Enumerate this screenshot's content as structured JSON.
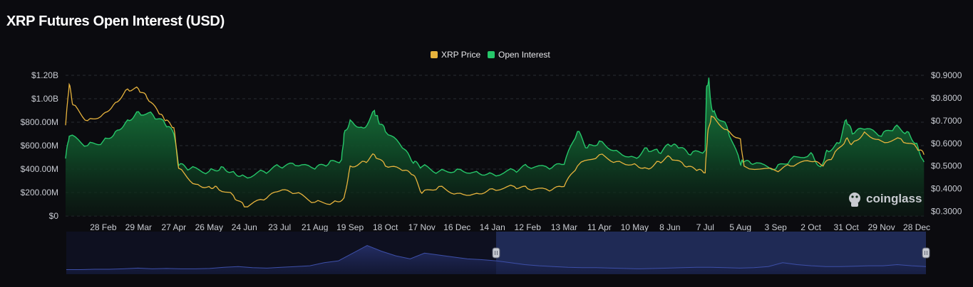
{
  "title": "XRP Futures Open Interest (USD)",
  "watermark": "coinglass",
  "colors": {
    "background": "#0b0b0f",
    "price_line": "#e7b33d",
    "oi_line": "#26c76a",
    "oi_fill_top": "#157a3c",
    "navigator_line": "#3d4fa8",
    "navigator_fill": "#1b2450",
    "navigator_selected": "#1f2a55"
  },
  "chart_data": {
    "type": "area",
    "title": "XRP Futures Open Interest (USD)",
    "x_tick_labels": [
      "28 Feb",
      "29 Mar",
      "27 Apr",
      "26 May",
      "24 Jun",
      "23 Jul",
      "21 Aug",
      "19 Sep",
      "18 Oct",
      "17 Nov",
      "16 Dec",
      "14 Jan",
      "12 Feb",
      "13 Mar",
      "11 Apr",
      "10 May",
      "8 Jun",
      "7 Jul",
      "5 Aug",
      "3 Sep",
      "2 Oct",
      "31 Oct",
      "29 Nov",
      "28 Dec"
    ],
    "y_left": {
      "label": "",
      "tick_labels": [
        "$0",
        "$200.00M",
        "$400.00M",
        "$600.00M",
        "$800.00M",
        "$1.00B",
        "$1.20B"
      ],
      "ylim": [
        0,
        1200000000
      ]
    },
    "y_right": {
      "label": "",
      "tick_labels": [
        "$0.3000",
        "$0.4000",
        "$0.5000",
        "$0.6000",
        "$0.7000",
        "$0.8000",
        "$0.9000"
      ],
      "ylim": [
        0.28,
        0.9
      ]
    },
    "grid": true,
    "legend_position": "top-center",
    "series": [
      {
        "name": "Open Interest",
        "axis": "left",
        "unit": "USD",
        "x": [
          "28 Jan",
          "31 Jan",
          "15 Feb",
          "28 Feb",
          "10 Mar",
          "20 Mar",
          "29 Mar",
          "10 Apr",
          "20 Apr",
          "27 Apr",
          "1 May",
          "10 May",
          "26 May",
          "5 Jun",
          "15 Jun",
          "24 Jun",
          "10 Jul",
          "23 Jul",
          "5 Aug",
          "21 Aug",
          "1 Sep",
          "12 Sep",
          "14 Sep",
          "19 Sep",
          "30 Sep",
          "9 Oct",
          "12 Oct",
          "18 Oct",
          "1 Nov",
          "10 Nov",
          "17 Nov",
          "1 Dec",
          "16 Dec",
          "1 Jan",
          "14 Jan",
          "1 Feb",
          "12 Feb",
          "1 Mar",
          "13 Mar",
          "24 Mar",
          "1 Apr",
          "11 Apr",
          "25 Apr",
          "10 May",
          "20 May",
          "30 May",
          "8 Jun",
          "15 Jun",
          "25 Jun",
          "7 Jul",
          "8 Jul",
          "10 Jul",
          "12 Jul",
          "15 Jul",
          "25 Jul",
          "5 Aug",
          "7 Aug",
          "15 Aug",
          "3 Sep",
          "15 Sep",
          "2 Oct",
          "10 Oct",
          "15 Oct",
          "25 Oct",
          "31 Oct",
          "5 Nov",
          "15 Nov",
          "29 Nov",
          "10 Dec",
          "20 Dec",
          "28 Dec",
          "3 Jan"
        ],
        "values": [
          490000000,
          680000000,
          600000000,
          640000000,
          720000000,
          820000000,
          890000000,
          860000000,
          780000000,
          700000000,
          430000000,
          400000000,
          380000000,
          420000000,
          380000000,
          340000000,
          380000000,
          420000000,
          430000000,
          400000000,
          440000000,
          480000000,
          700000000,
          820000000,
          750000000,
          900000000,
          820000000,
          720000000,
          580000000,
          450000000,
          420000000,
          380000000,
          400000000,
          380000000,
          360000000,
          390000000,
          420000000,
          400000000,
          440000000,
          720000000,
          580000000,
          640000000,
          560000000,
          500000000,
          580000000,
          540000000,
          600000000,
          580000000,
          520000000,
          560000000,
          1080000000,
          1180000000,
          940000000,
          880000000,
          760000000,
          440000000,
          460000000,
          440000000,
          400000000,
          480000000,
          540000000,
          420000000,
          560000000,
          620000000,
          820000000,
          700000000,
          740000000,
          680000000,
          760000000,
          720000000,
          620000000,
          460000000
        ]
      },
      {
        "name": "XRP Price",
        "axis": "right",
        "unit": "USD",
        "x": [
          "28 Jan",
          "31 Jan",
          "3 Feb",
          "15 Feb",
          "28 Feb",
          "10 Mar",
          "20 Mar",
          "29 Mar",
          "5 Apr",
          "15 Apr",
          "20 Apr",
          "27 Apr",
          "1 May",
          "15 May",
          "26 May",
          "1 Jun",
          "15 Jun",
          "24 Jun",
          "10 Jul",
          "23 Jul",
          "5 Aug",
          "21 Aug",
          "5 Sep",
          "14 Sep",
          "19 Sep",
          "1 Oct",
          "9 Oct",
          "18 Oct",
          "1 Nov",
          "10 Nov",
          "17 Nov",
          "1 Dec",
          "16 Dec",
          "1 Jan",
          "14 Jan",
          "1 Feb",
          "12 Feb",
          "1 Mar",
          "13 Mar",
          "24 Mar",
          "11 Apr",
          "25 Apr",
          "10 May",
          "20 May",
          "30 May",
          "8 Jun",
          "20 Jun",
          "30 Jun",
          "7 Jul",
          "9 Jul",
          "12 Jul",
          "25 Jul",
          "5 Aug",
          "8 Aug",
          "3 Sep",
          "15 Sep",
          "2 Oct",
          "12 Oct",
          "20 Oct",
          "31 Oct",
          "5 Nov",
          "15 Nov",
          "29 Nov",
          "15 Dec",
          "28 Dec",
          "3 Jan"
        ],
        "values": [
          0.68,
          0.86,
          0.77,
          0.7,
          0.73,
          0.78,
          0.84,
          0.84,
          0.8,
          0.73,
          0.7,
          0.67,
          0.49,
          0.42,
          0.41,
          0.41,
          0.37,
          0.32,
          0.35,
          0.39,
          0.38,
          0.34,
          0.34,
          0.36,
          0.5,
          0.52,
          0.55,
          0.5,
          0.48,
          0.46,
          0.38,
          0.41,
          0.38,
          0.38,
          0.4,
          0.41,
          0.4,
          0.39,
          0.41,
          0.5,
          0.55,
          0.52,
          0.51,
          0.49,
          0.52,
          0.54,
          0.5,
          0.48,
          0.47,
          0.64,
          0.72,
          0.66,
          0.62,
          0.5,
          0.48,
          0.5,
          0.52,
          0.5,
          0.54,
          0.62,
          0.6,
          0.65,
          0.61,
          0.62,
          0.58,
          0.55
        ]
      }
    ],
    "navigator": {
      "values": [
        0.12,
        0.12,
        0.13,
        0.13,
        0.14,
        0.16,
        0.14,
        0.15,
        0.14,
        0.14,
        0.15,
        0.18,
        0.2,
        0.17,
        0.16,
        0.18,
        0.2,
        0.22,
        0.3,
        0.35,
        0.55,
        0.75,
        0.6,
        0.48,
        0.4,
        0.55,
        0.5,
        0.45,
        0.4,
        0.38,
        0.35,
        0.3,
        0.25,
        0.22,
        0.2,
        0.18,
        0.17,
        0.17,
        0.16,
        0.15,
        0.14,
        0.15,
        0.16,
        0.17,
        0.18,
        0.18,
        0.17,
        0.16,
        0.17,
        0.2,
        0.3,
        0.25,
        0.22,
        0.2,
        0.2,
        0.21,
        0.22,
        0.22,
        0.25,
        0.22,
        0.2
      ],
      "selected_range_fraction": [
        0.5,
        1.0
      ]
    }
  },
  "legend": {
    "items": [
      {
        "label": "XRP Price",
        "color": "#e7b33d"
      },
      {
        "label": "Open Interest",
        "color": "#26c76a"
      }
    ]
  }
}
